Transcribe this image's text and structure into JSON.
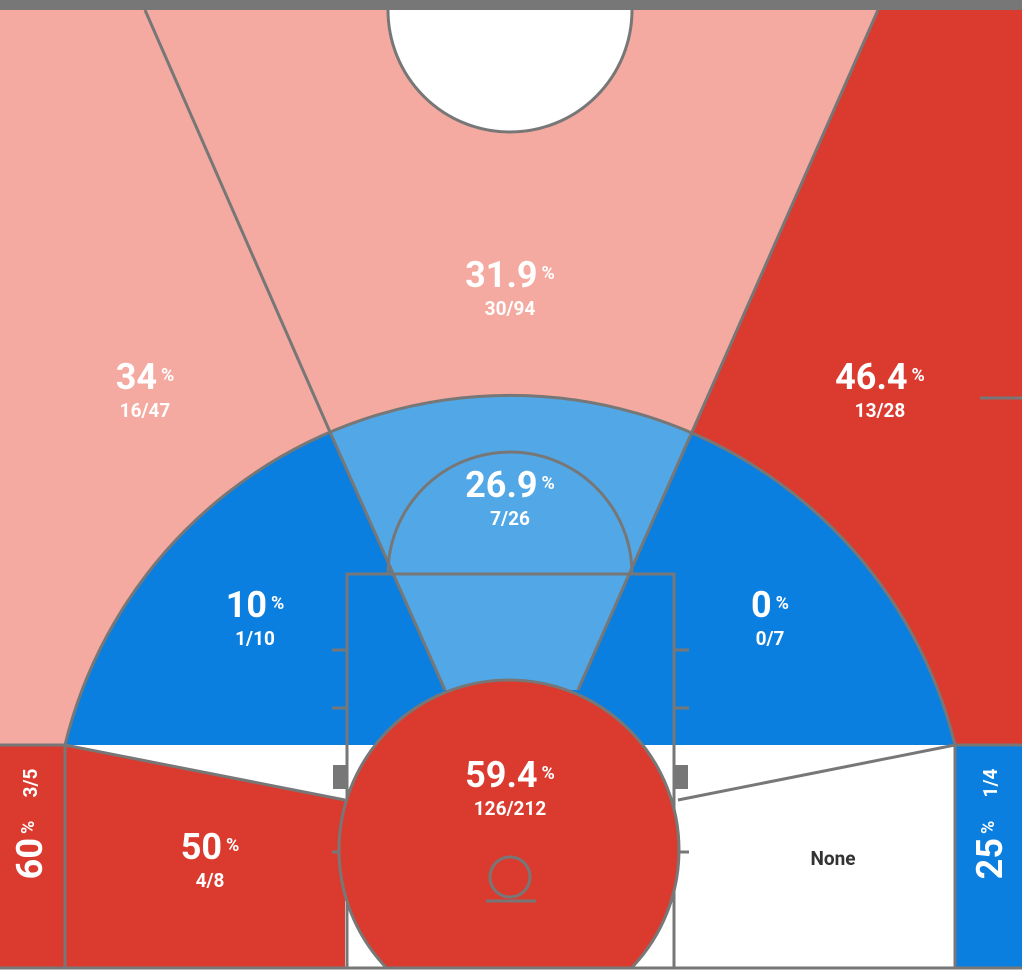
{
  "zones": [
    {
      "pct": "31.9",
      "unit": "%",
      "shots": "30/94"
    },
    {
      "pct": "34",
      "unit": "%",
      "shots": "16/47"
    },
    {
      "pct": "46.4",
      "unit": "%",
      "shots": "13/28"
    },
    {
      "pct": "26.9",
      "unit": "%",
      "shots": "7/26"
    },
    {
      "pct": "10",
      "unit": "%",
      "shots": "1/10"
    },
    {
      "pct": "0",
      "unit": "%",
      "shots": "0/7"
    },
    {
      "pct": "59.4",
      "unit": "%",
      "shots": "126/212"
    },
    {
      "pct": "50",
      "unit": "%",
      "shots": "4/8"
    },
    {
      "label": "None"
    },
    {
      "pct": "60",
      "unit": "%",
      "shots": "3/5"
    },
    {
      "pct": "25",
      "unit": "%",
      "shots": "1/4"
    }
  ]
}
